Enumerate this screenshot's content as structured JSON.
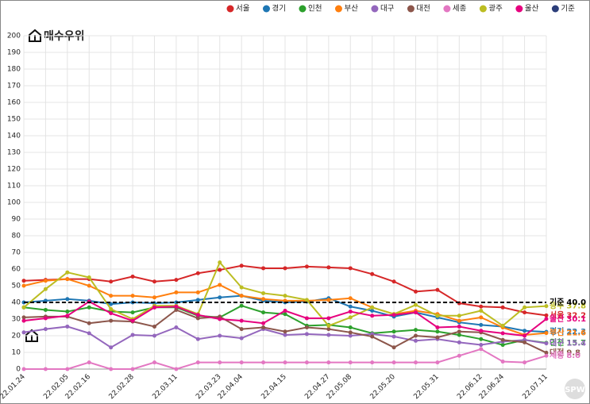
{
  "chart_data": {
    "type": "line",
    "title": "매수우위",
    "categories": [
      "22.01.24",
      null,
      "22.02.05",
      "22.02.16",
      null,
      "22.02.28",
      null,
      "22.03.11",
      null,
      "22.03.23",
      "22.04.04",
      null,
      "22.04.15",
      null,
      "22.04.27",
      "22.05.08",
      null,
      "22.05.20",
      null,
      "22.05.31",
      null,
      "22.06.12",
      "22.06.24",
      null,
      "22.07.11"
    ],
    "ylim": [
      0,
      200
    ],
    "yticks": [
      0,
      10,
      20,
      30,
      40,
      50,
      60,
      70,
      80,
      90,
      100,
      110,
      120,
      130,
      140,
      150,
      160,
      170,
      180,
      190,
      200
    ],
    "grid": true,
    "legend": "top-right",
    "watermark": "SPW",
    "series": [
      {
        "name": "서울",
        "color": "#d62728",
        "values": [
          53,
          53.5,
          54,
          54,
          52.5,
          55.5,
          52.5,
          53.5,
          57.5,
          59.5,
          62,
          60.5,
          60.5,
          61.5,
          61,
          60.5,
          57,
          52.5,
          46.5,
          47.5,
          39.5,
          37.5,
          37,
          34,
          32.2
        ],
        "value_labels": [
          null,
          null,
          null,
          null,
          null,
          null,
          null,
          null,
          null,
          null,
          null,
          null,
          null,
          null,
          null,
          null,
          null,
          null,
          null,
          null,
          null,
          null,
          null,
          null,
          "32.2"
        ]
      },
      {
        "name": "경기",
        "color": "#1f77b4",
        "values": [
          40,
          41,
          42,
          41,
          39,
          40,
          39.5,
          40,
          41.5,
          43,
          44,
          41,
          40,
          40.5,
          42.5,
          37.5,
          35,
          31.5,
          34,
          31,
          28,
          26.5,
          25.5,
          23,
          22.3
        ],
        "value_labels": [
          null,
          null,
          null,
          null,
          null,
          null,
          null,
          null,
          null,
          null,
          null,
          null,
          null,
          null,
          null,
          null,
          null,
          null,
          null,
          null,
          null,
          null,
          null,
          null,
          "22.3"
        ]
      },
      {
        "name": "인천",
        "color": "#2ca02c",
        "values": [
          37,
          35.5,
          34.5,
          37,
          34.5,
          34,
          37,
          37,
          32,
          31,
          38,
          34,
          33,
          26,
          26.5,
          25,
          21.5,
          22.5,
          23.5,
          22.5,
          20.5,
          18,
          14.5,
          17.5,
          15.7
        ],
        "value_labels": [
          null,
          null,
          null,
          null,
          null,
          null,
          null,
          null,
          null,
          null,
          null,
          null,
          null,
          null,
          null,
          null,
          null,
          null,
          null,
          null,
          null,
          null,
          null,
          null,
          "15.7"
        ]
      },
      {
        "name": "부산",
        "color": "#ff7f0e",
        "values": [
          50,
          53,
          54,
          50,
          44,
          44,
          43,
          46,
          46,
          50.5,
          44,
          42,
          41,
          41,
          41.5,
          42.5,
          37,
          33,
          35,
          33,
          29,
          31,
          25,
          20.5,
          21.6
        ],
        "value_labels": [
          null,
          null,
          null,
          null,
          null,
          null,
          null,
          null,
          null,
          null,
          null,
          null,
          null,
          null,
          null,
          null,
          null,
          null,
          null,
          null,
          null,
          null,
          null,
          null,
          "21.6"
        ]
      },
      {
        "name": "대구",
        "color": "#9467bd",
        "values": [
          22,
          24,
          25.5,
          21.5,
          13,
          20.5,
          20,
          25,
          18,
          20,
          18.5,
          24,
          20.5,
          21,
          20.5,
          20,
          21,
          19.5,
          17,
          18,
          16,
          14.5,
          16.5,
          17.5,
          15.4
        ],
        "value_labels": [
          null,
          null,
          null,
          null,
          null,
          null,
          null,
          null,
          null,
          null,
          null,
          null,
          null,
          null,
          null,
          null,
          null,
          null,
          null,
          null,
          null,
          null,
          null,
          null,
          "15.4"
        ]
      },
      {
        "name": "대전",
        "color": "#8c564b",
        "values": [
          31,
          31.5,
          31.5,
          27.5,
          29,
          28.5,
          25.5,
          35.5,
          30.5,
          31.5,
          24,
          25,
          22.5,
          25,
          24,
          22,
          19.5,
          13,
          20,
          19,
          22.5,
          22,
          17.5,
          16,
          9.8
        ],
        "value_labels": [
          null,
          null,
          null,
          null,
          null,
          null,
          null,
          null,
          null,
          null,
          null,
          null,
          null,
          null,
          null,
          null,
          null,
          null,
          null,
          null,
          null,
          null,
          null,
          null,
          "9.8"
        ]
      },
      {
        "name": "세종",
        "color": "#e377c2",
        "values": [
          0,
          0,
          0,
          4,
          0,
          0,
          4,
          0,
          4,
          4,
          4,
          4,
          4,
          4,
          4,
          4,
          4,
          4,
          4,
          4,
          8,
          12,
          4.5,
          4,
          8
        ],
        "value_labels": [
          null,
          null,
          null,
          null,
          null,
          null,
          null,
          null,
          null,
          null,
          null,
          null,
          null,
          null,
          null,
          null,
          null,
          null,
          null,
          null,
          null,
          null,
          null,
          null,
          "8.0"
        ]
      },
      {
        "name": "광주",
        "color": "#bcbd22",
        "values": [
          37,
          48,
          58,
          55,
          36,
          30,
          38,
          38,
          33,
          64,
          49,
          45.5,
          44,
          41.5,
          26,
          31,
          37,
          33,
          38.5,
          32,
          32,
          35,
          26,
          37,
          37.8
        ],
        "value_labels": [
          null,
          null,
          null,
          null,
          null,
          null,
          null,
          null,
          null,
          null,
          null,
          null,
          null,
          null,
          null,
          null,
          null,
          null,
          null,
          null,
          null,
          null,
          null,
          null,
          "37.8"
        ]
      },
      {
        "name": "울산",
        "color": "#e6007e",
        "values": [
          29,
          30.5,
          32,
          40.5,
          33.5,
          29,
          37,
          37.5,
          32.5,
          30,
          29,
          27.5,
          35,
          30.5,
          30.5,
          34.5,
          32,
          32.5,
          34,
          25,
          25.5,
          23,
          21.5,
          20,
          30.1
        ],
        "value_labels": [
          null,
          null,
          null,
          null,
          null,
          null,
          null,
          null,
          null,
          null,
          null,
          null,
          null,
          null,
          null,
          null,
          null,
          null,
          null,
          null,
          null,
          null,
          null,
          null,
          "30.1"
        ]
      },
      {
        "name": "기준",
        "color": "#2c3e7a",
        "dashed": true,
        "values": [
          40,
          40,
          40,
          40,
          40,
          40,
          40,
          40,
          40,
          40,
          40,
          40,
          40,
          40,
          40,
          40,
          40,
          40,
          40,
          40,
          40,
          40,
          40,
          40,
          40
        ],
        "value_labels": [
          null,
          null,
          null,
          null,
          null,
          null,
          null,
          null,
          null,
          null,
          null,
          null,
          null,
          null,
          null,
          null,
          null,
          null,
          null,
          null,
          null,
          null,
          null,
          null,
          "40.0"
        ]
      }
    ]
  }
}
